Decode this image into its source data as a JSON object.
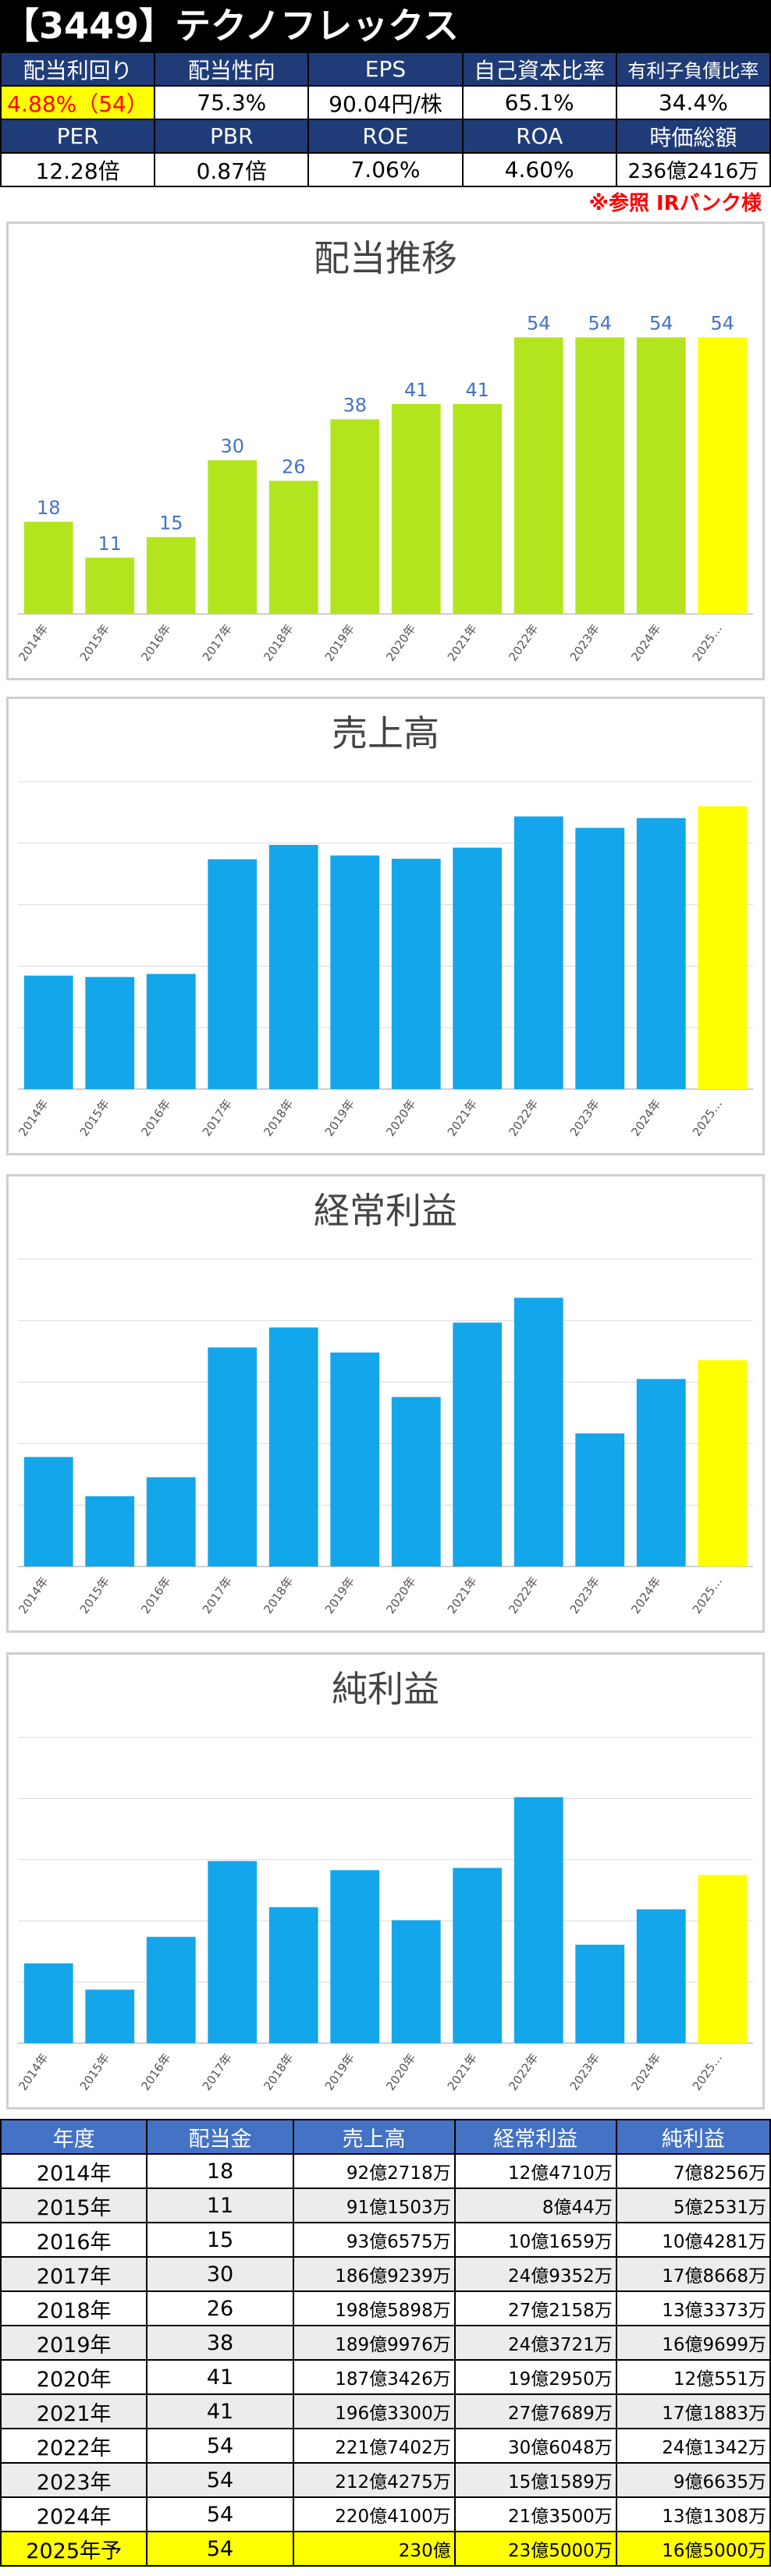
{
  "title": "【3449】テクノフレックス",
  "metrics_row1_headers": [
    "配当利回り",
    "配当性向",
    "EPS",
    "自己資本比率",
    "有利子負債比率"
  ],
  "metrics_row1_values": [
    "4.88%（54）",
    "75.3%",
    "90.04円/株",
    "65.1%",
    "34.4%"
  ],
  "metrics_row2_headers": [
    "PER",
    "PBR",
    "ROE",
    "ROA",
    "時価総額"
  ],
  "metrics_row2_values": [
    "12.28倍",
    "0.87倍",
    "7.06%",
    "4.60%",
    "236億2416万"
  ],
  "reference_note": "※参照  IRバンク様",
  "colors": {
    "dividend_bar": "#b3e51f",
    "financial_bar": "#13a6ea",
    "forecast": "#ffff00",
    "header_navy": "#1f3c78",
    "table_header_blue": "#4472c4",
    "note_red": "#ff0000"
  },
  "chart_data": [
    {
      "type": "bar",
      "title": "配当推移",
      "categories": [
        "2014年",
        "2015年",
        "2016年",
        "2017年",
        "2018年",
        "2019年",
        "2020年",
        "2021年",
        "2022年",
        "2023年",
        "2024年",
        "2025…"
      ],
      "values": [
        18,
        11,
        15,
        30,
        26,
        38,
        41,
        41,
        54,
        54,
        54,
        54
      ],
      "data_labels": [
        "18",
        "11",
        "15",
        "30",
        "26",
        "38",
        "41",
        "41",
        "54",
        "54",
        "54",
        "54"
      ],
      "ylim": [
        0,
        60
      ],
      "grid": false,
      "highlight_last": true
    },
    {
      "type": "bar",
      "title": "売上高",
      "unit": "億円",
      "categories": [
        "2014年",
        "2015年",
        "2016年",
        "2017年",
        "2018年",
        "2019年",
        "2020年",
        "2021年",
        "2022年",
        "2023年",
        "2024年",
        "2025…"
      ],
      "values": [
        92.27,
        91.15,
        93.66,
        186.92,
        198.59,
        189.99,
        187.34,
        196.33,
        221.74,
        212.43,
        220.41,
        230
      ],
      "ylim": [
        0,
        250
      ],
      "grid": true,
      "highlight_last": true
    },
    {
      "type": "bar",
      "title": "経常利益",
      "unit": "億円",
      "categories": [
        "2014年",
        "2015年",
        "2016年",
        "2017年",
        "2018年",
        "2019年",
        "2020年",
        "2021年",
        "2022年",
        "2023年",
        "2024年",
        "2025…"
      ],
      "values": [
        12.47,
        8.0,
        10.17,
        24.94,
        27.22,
        24.37,
        19.3,
        27.77,
        30.6,
        15.16,
        21.35,
        23.5
      ],
      "ylim": [
        0,
        35
      ],
      "grid": true,
      "highlight_last": true
    },
    {
      "type": "bar",
      "title": "純利益",
      "unit": "億円",
      "categories": [
        "2014年",
        "2015年",
        "2016年",
        "2017年",
        "2018年",
        "2019年",
        "2020年",
        "2021年",
        "2022年",
        "2023年",
        "2024年",
        "2025…"
      ],
      "values": [
        7.83,
        5.25,
        10.43,
        17.87,
        13.34,
        16.97,
        12.06,
        17.19,
        24.13,
        9.66,
        13.13,
        16.5
      ],
      "ylim": [
        0,
        30
      ],
      "grid": true,
      "highlight_last": true
    }
  ],
  "summary_table": {
    "headers": [
      "年度",
      "配当金",
      "売上高",
      "経常利益",
      "純利益"
    ],
    "rows": [
      [
        "2014年",
        "18",
        "92億2718万",
        "12億4710万",
        "7億8256万"
      ],
      [
        "2015年",
        "11",
        "91億1503万",
        "8億44万",
        "5億2531万"
      ],
      [
        "2016年",
        "15",
        "93億6575万",
        "10億1659万",
        "10億4281万"
      ],
      [
        "2017年",
        "30",
        "186億9239万",
        "24億9352万",
        "17億8668万"
      ],
      [
        "2018年",
        "26",
        "198億5898万",
        "27億2158万",
        "13億3373万"
      ],
      [
        "2019年",
        "38",
        "189億9976万",
        "24億3721万",
        "16億9699万"
      ],
      [
        "2020年",
        "41",
        "187億3426万",
        "19億2950万",
        "12億551万"
      ],
      [
        "2021年",
        "41",
        "196億3300万",
        "27億7689万",
        "17億1883万"
      ],
      [
        "2022年",
        "54",
        "221億7402万",
        "30億6048万",
        "24億1342万"
      ],
      [
        "2023年",
        "54",
        "212億4275万",
        "15億1589万",
        "9億6635万"
      ],
      [
        "2024年",
        "54",
        "220億4100万",
        "21億3500万",
        "13億1308万"
      ],
      [
        "2025年予",
        "54",
        "230億",
        "23億5000万",
        "16億5000万"
      ]
    ]
  }
}
